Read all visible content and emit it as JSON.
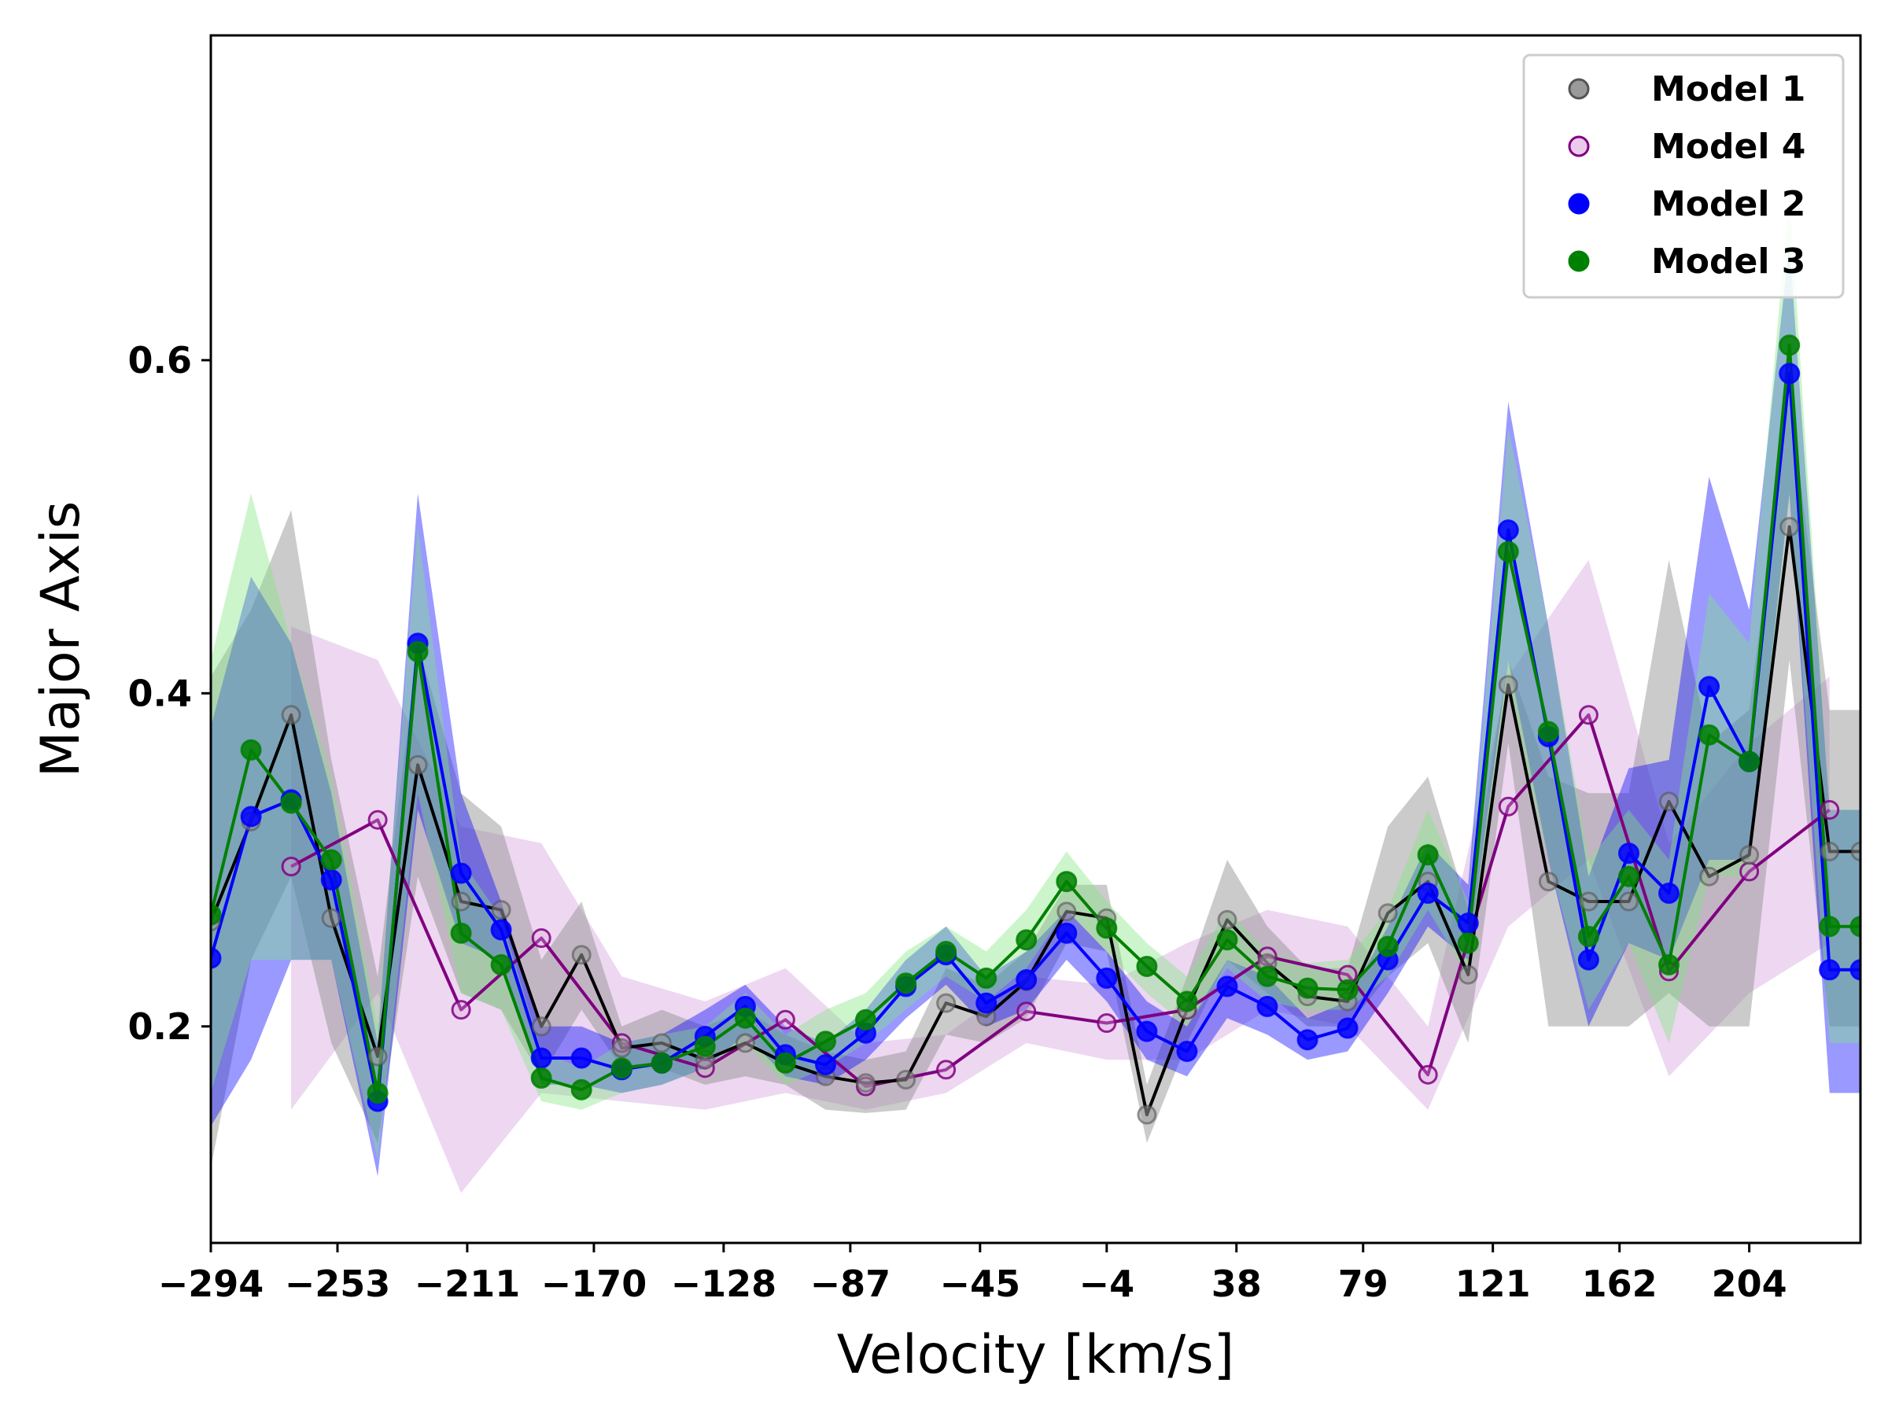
{
  "chart_data": {
    "type": "line",
    "title": "",
    "xlabel": "Velocity [km/s]",
    "ylabel": "Major Axis",
    "xlim": [
      -294,
      240
    ],
    "ylim": [
      0.07,
      0.795
    ],
    "x_ticks": [
      -294,
      -253,
      -211,
      -170,
      -128,
      -87,
      -45,
      -4,
      38,
      79,
      121,
      162,
      204
    ],
    "x_tick_labels": [
      "−294",
      "−253",
      "−211",
      "−170",
      "−128",
      "−87",
      "−45",
      "−4",
      "38",
      "79",
      "121",
      "162",
      "204"
    ],
    "y_ticks": [
      0.2,
      0.4,
      0.6
    ],
    "y_tick_labels": [
      "0.2",
      "0.4",
      "0.6"
    ],
    "grid": false,
    "legend_position": "top-right",
    "x": [
      -294,
      -281,
      -268,
      -255,
      -240,
      -227,
      -213,
      -200,
      -187,
      -174,
      -161,
      -148,
      -134,
      -121,
      -108,
      -95,
      -82,
      -69,
      -56,
      -43,
      -30,
      -17,
      -4,
      9,
      22,
      35,
      48,
      61,
      74,
      87,
      100,
      113,
      126,
      139,
      152,
      165,
      178,
      191,
      204,
      217,
      230,
      240
    ],
    "series": [
      {
        "name": "Model 1",
        "line_color": "#000000",
        "marker_face": "#9a9a9a",
        "marker_edge": "#555555",
        "band_color": "#8c8c8c",
        "band_opacity": 0.45,
        "markers_filled": true,
        "values": [
          0.263,
          0.323,
          0.387,
          0.265,
          0.182,
          0.357,
          0.275,
          0.27,
          0.2,
          0.243,
          0.187,
          0.19,
          0.18,
          0.19,
          0.178,
          0.17,
          0.166,
          0.168,
          0.214,
          0.206,
          0.227,
          0.269,
          0.265,
          0.147,
          0.21,
          0.264,
          0.238,
          0.218,
          0.215,
          0.268,
          0.287,
          0.231,
          0.405,
          0.287,
          0.275,
          0.275,
          0.335,
          0.29,
          0.303,
          0.5,
          0.305,
          0.305
        ],
        "lower": [
          0.115,
          0.24,
          0.29,
          0.19,
          0.13,
          0.29,
          0.22,
          0.21,
          0.17,
          0.21,
          0.175,
          0.175,
          0.165,
          0.17,
          0.165,
          0.15,
          0.148,
          0.15,
          0.195,
          0.19,
          0.205,
          0.25,
          0.245,
          0.13,
          0.19,
          0.24,
          0.22,
          0.2,
          0.2,
          0.23,
          0.25,
          0.19,
          0.37,
          0.2,
          0.2,
          0.2,
          0.22,
          0.2,
          0.2,
          0.42,
          0.2,
          0.2
        ],
        "upper": [
          0.41,
          0.45,
          0.51,
          0.36,
          0.23,
          0.43,
          0.34,
          0.32,
          0.24,
          0.275,
          0.2,
          0.21,
          0.2,
          0.21,
          0.195,
          0.185,
          0.18,
          0.185,
          0.235,
          0.225,
          0.245,
          0.285,
          0.285,
          0.165,
          0.23,
          0.3,
          0.26,
          0.235,
          0.235,
          0.32,
          0.35,
          0.27,
          0.42,
          0.35,
          0.34,
          0.34,
          0.48,
          0.37,
          0.39,
          0.58,
          0.39,
          0.39
        ]
      },
      {
        "name": "Model 4",
        "line_color": "#800080",
        "marker_face": "#dda8dd",
        "marker_edge": "#800080",
        "band_color": "#d8a6df",
        "band_opacity": 0.45,
        "markers_filled": false,
        "values": [
          null,
          null,
          0.296,
          null,
          0.324,
          null,
          0.21,
          null,
          0.253,
          null,
          0.19,
          null,
          0.175,
          null,
          0.204,
          null,
          0.164,
          null,
          0.174,
          null,
          0.209,
          null,
          0.202,
          null,
          0.21,
          null,
          0.242,
          null,
          0.231,
          null,
          0.171,
          null,
          0.332,
          null,
          0.387,
          null,
          0.233,
          null,
          0.293,
          null,
          0.33,
          null
        ],
        "lower": [
          null,
          null,
          0.15,
          null,
          0.22,
          null,
          0.1,
          null,
          0.16,
          null,
          0.155,
          null,
          0.15,
          null,
          0.16,
          null,
          0.15,
          null,
          0.16,
          null,
          0.19,
          null,
          0.18,
          null,
          0.18,
          null,
          0.21,
          null,
          0.2,
          null,
          0.15,
          null,
          0.26,
          null,
          0.3,
          null,
          0.17,
          null,
          0.22,
          null,
          0.25,
          null
        ],
        "upper": [
          null,
          null,
          0.44,
          null,
          0.42,
          null,
          0.32,
          null,
          0.31,
          null,
          0.23,
          null,
          0.215,
          null,
          0.235,
          null,
          0.19,
          null,
          0.195,
          null,
          0.23,
          null,
          0.225,
          null,
          0.25,
          null,
          0.27,
          null,
          0.26,
          null,
          0.2,
          null,
          0.41,
          null,
          0.48,
          null,
          0.31,
          null,
          0.37,
          null,
          0.41,
          null
        ]
      },
      {
        "name": "Model 2",
        "line_color": "#0000ff",
        "marker_face": "#0000ff",
        "marker_edge": "#0000ff",
        "band_color": "#0000ff",
        "band_opacity": 0.4,
        "markers_filled": true,
        "values": [
          0.241,
          0.326,
          0.336,
          0.288,
          0.155,
          0.43,
          0.292,
          0.258,
          0.181,
          0.181,
          0.174,
          0.178,
          0.194,
          0.212,
          0.183,
          0.177,
          0.196,
          0.224,
          0.243,
          0.214,
          0.228,
          0.256,
          0.229,
          0.197,
          0.185,
          0.224,
          0.212,
          0.192,
          0.199,
          0.24,
          0.28,
          0.262,
          0.498,
          0.374,
          0.24,
          0.304,
          0.28,
          0.404,
          0.359,
          0.592,
          0.234,
          0.234
        ],
        "lower": [
          0.14,
          0.18,
          0.24,
          0.24,
          0.11,
          0.33,
          0.25,
          0.24,
          0.165,
          0.165,
          0.16,
          0.165,
          0.175,
          0.195,
          0.17,
          0.165,
          0.18,
          0.205,
          0.225,
          0.2,
          0.21,
          0.24,
          0.215,
          0.18,
          0.17,
          0.205,
          0.195,
          0.18,
          0.185,
          0.22,
          0.26,
          0.24,
          0.42,
          0.3,
          0.2,
          0.25,
          0.24,
          0.3,
          0.3,
          0.52,
          0.16,
          0.16
        ],
        "upper": [
          0.38,
          0.47,
          0.43,
          0.34,
          0.19,
          0.52,
          0.34,
          0.275,
          0.2,
          0.2,
          0.19,
          0.195,
          0.21,
          0.225,
          0.2,
          0.19,
          0.21,
          0.24,
          0.26,
          0.23,
          0.245,
          0.27,
          0.245,
          0.215,
          0.2,
          0.24,
          0.23,
          0.205,
          0.215,
          0.26,
          0.31,
          0.285,
          0.575,
          0.44,
          0.29,
          0.355,
          0.36,
          0.53,
          0.45,
          0.67,
          0.33,
          0.33
        ]
      },
      {
        "name": "Model 3",
        "line_color": "#008000",
        "marker_face": "#008000",
        "marker_edge": "#008000",
        "band_color": "#7fe67f",
        "band_opacity": 0.4,
        "markers_filled": true,
        "values": [
          0.267,
          0.366,
          0.334,
          0.3,
          0.16,
          0.425,
          0.256,
          0.237,
          0.169,
          0.162,
          0.175,
          0.178,
          0.188,
          0.205,
          0.178,
          0.191,
          0.204,
          0.226,
          0.245,
          0.229,
          0.252,
          0.287,
          0.259,
          0.236,
          0.215,
          0.252,
          0.23,
          0.223,
          0.222,
          0.248,
          0.303,
          0.25,
          0.485,
          0.377,
          0.254,
          0.29,
          0.237,
          0.375,
          0.359,
          0.609,
          0.26,
          0.26
        ],
        "lower": [
          0.16,
          0.24,
          0.24,
          0.24,
          0.12,
          0.34,
          0.22,
          0.21,
          0.155,
          0.15,
          0.16,
          0.165,
          0.175,
          0.19,
          0.165,
          0.175,
          0.19,
          0.21,
          0.23,
          0.215,
          0.235,
          0.27,
          0.245,
          0.22,
          0.2,
          0.235,
          0.215,
          0.21,
          0.21,
          0.23,
          0.27,
          0.23,
          0.4,
          0.3,
          0.21,
          0.25,
          0.19,
          0.29,
          0.29,
          0.52,
          0.19,
          0.19
        ],
        "upper": [
          0.42,
          0.52,
          0.43,
          0.35,
          0.2,
          0.5,
          0.3,
          0.265,
          0.185,
          0.175,
          0.19,
          0.195,
          0.2,
          0.22,
          0.195,
          0.21,
          0.22,
          0.245,
          0.26,
          0.245,
          0.27,
          0.305,
          0.275,
          0.25,
          0.23,
          0.27,
          0.245,
          0.238,
          0.24,
          0.27,
          0.33,
          0.275,
          0.56,
          0.44,
          0.3,
          0.33,
          0.3,
          0.46,
          0.43,
          0.7,
          0.33,
          0.33
        ]
      }
    ],
    "legend_order": [
      "Model 1",
      "Model 4",
      "Model 2",
      "Model 3"
    ]
  }
}
